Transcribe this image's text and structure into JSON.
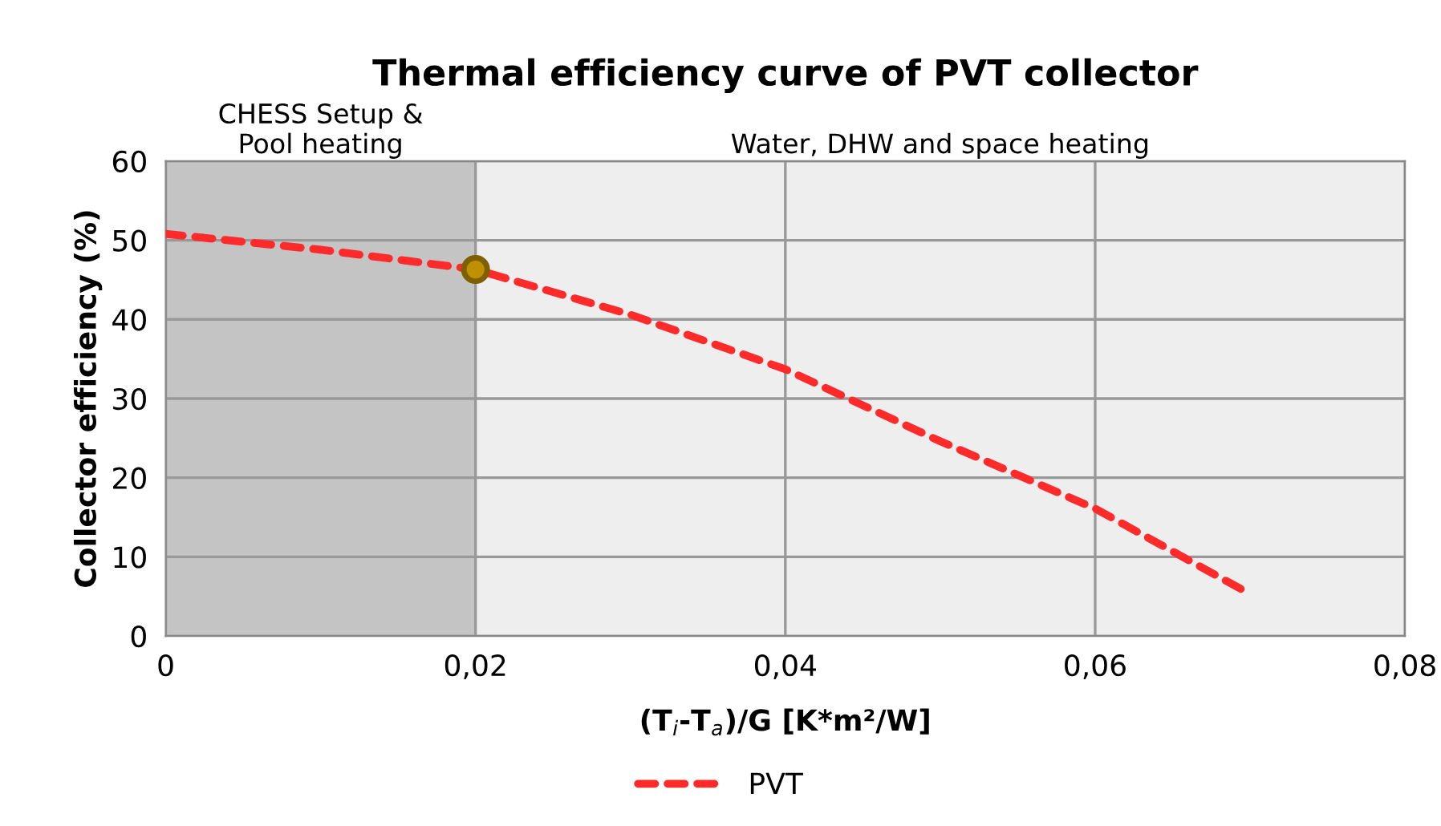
{
  "chart_data": {
    "type": "line",
    "title": "Thermal efficiency curve of PVT collector",
    "xlabel": "(T$_{i}$-T$_{a}$)/G [K*m²/W]",
    "ylabel": "Collector efficiency (%)",
    "series": [
      {
        "name": "PVT",
        "color": "#ff2a2a",
        "x": [
          0,
          0.01,
          0.02,
          0.03,
          0.04,
          0.05,
          0.06,
          0.07
        ],
        "values": [
          50.8,
          48.8,
          46.3,
          40.6,
          33.7,
          24.6,
          16.1,
          5.3
        ],
        "line_style": "dashed",
        "marker": "none"
      },
      {
        "type": "scatter",
        "color": "#bf9000",
        "x": [
          0.02
        ],
        "values": [
          46.3
        ],
        "marker": "circle"
      }
    ],
    "bands": [
      {
        "axis": "x",
        "from": 0,
        "to": 0.02,
        "label": "CHESS Setup &\nPool heating",
        "color": "#c4c4c4"
      },
      {
        "axis": "x",
        "from": 0.02,
        "to": 0.08,
        "label": "Water, DHW and space heating",
        "color": "#eeeeee"
      }
    ],
    "xlim": [
      0,
      0.08
    ],
    "xticks": [
      0,
      {
        "value": 0.02,
        "label": "0,02"
      },
      {
        "value": 0.04,
        "label": "0,04"
      },
      {
        "value": 0.06,
        "label": "0,06"
      },
      {
        "value": 0.08,
        "label": "0,08"
      }
    ],
    "ylim": [
      0,
      60
    ],
    "yticks": [
      0,
      10,
      20,
      30,
      40,
      50,
      60
    ],
    "grid": true,
    "legend": "bottom"
  }
}
